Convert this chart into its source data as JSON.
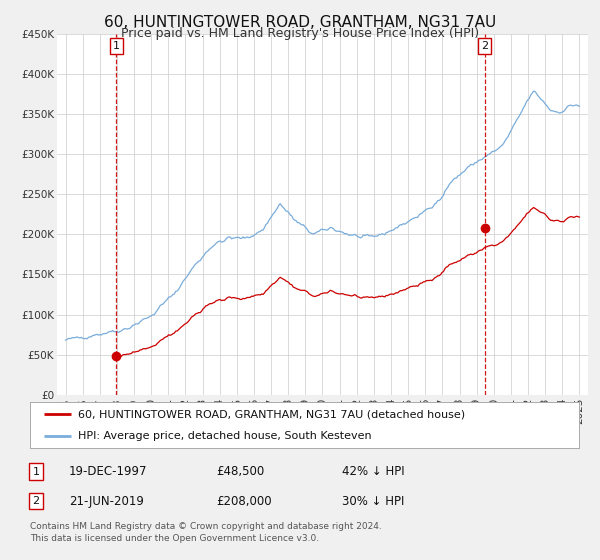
{
  "title": "60, HUNTINGTOWER ROAD, GRANTHAM, NG31 7AU",
  "subtitle": "Price paid vs. HM Land Registry's House Price Index (HPI)",
  "legend_line1": "60, HUNTINGTOWER ROAD, GRANTHAM, NG31 7AU (detached house)",
  "legend_line2": "HPI: Average price, detached house, South Kesteven",
  "footer": "Contains HM Land Registry data © Crown copyright and database right 2024.\nThis data is licensed under the Open Government Licence v3.0.",
  "annotation1_date": "19-DEC-1997",
  "annotation1_price": "£48,500",
  "annotation1_hpi": "42% ↓ HPI",
  "annotation2_date": "21-JUN-2019",
  "annotation2_price": "£208,000",
  "annotation2_hpi": "30% ↓ HPI",
  "sale1_x": 1997.97,
  "sale1_y": 48500,
  "sale2_x": 2019.47,
  "sale2_y": 208000,
  "vline1_x": 1997.97,
  "vline2_x": 2019.47,
  "xmin": 1994.5,
  "xmax": 2025.5,
  "ymin": 0,
  "ymax": 450000,
  "yticks": [
    0,
    50000,
    100000,
    150000,
    200000,
    250000,
    300000,
    350000,
    400000,
    450000
  ],
  "ylabels": [
    "£0",
    "£50K",
    "£100K",
    "£150K",
    "£200K",
    "£250K",
    "£300K",
    "£350K",
    "£400K",
    "£450K"
  ],
  "red_color": "#cc0000",
  "blue_color": "#7aaddb",
  "grid_color": "#cccccc",
  "fig_bg_color": "#f0f0f0",
  "plot_bg_color": "#ffffff",
  "title_fontsize": 11,
  "subtitle_fontsize": 9,
  "tick_fontsize": 7.5,
  "legend_fontsize": 8,
  "annot_fontsize": 8.5,
  "footer_fontsize": 6.5
}
